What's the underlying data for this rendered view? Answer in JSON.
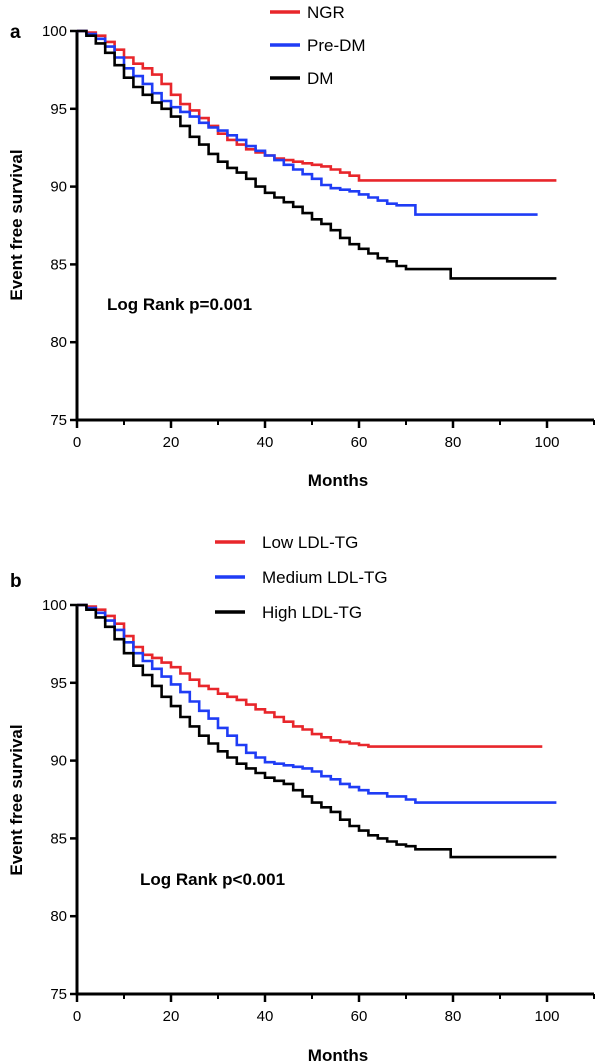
{
  "chart_data": [
    {
      "type": "line",
      "panel_label": "a",
      "xlabel": "Months",
      "ylabel": "Event free survival",
      "xlim": [
        0,
        110
      ],
      "ylim": [
        75,
        100
      ],
      "xticks": [
        0,
        20,
        40,
        60,
        80,
        100
      ],
      "yticks": [
        75,
        80,
        85,
        90,
        95,
        100
      ],
      "annotation": "Log Rank p=0.001",
      "legend_position": "top-center",
      "series": [
        {
          "name": "NGR",
          "color": "#e8262b",
          "points": [
            [
              0,
              100
            ],
            [
              2,
              99.9
            ],
            [
              4,
              99.7
            ],
            [
              6,
              99.3
            ],
            [
              8,
              98.8
            ],
            [
              10,
              98.3
            ],
            [
              12,
              97.9
            ],
            [
              14,
              97.6
            ],
            [
              16,
              97.2
            ],
            [
              18,
              96.6
            ],
            [
              20,
              95.9
            ],
            [
              22,
              95.3
            ],
            [
              24,
              94.9
            ],
            [
              26,
              94.4
            ],
            [
              28,
              93.9
            ],
            [
              30,
              93.4
            ],
            [
              32,
              93.0
            ],
            [
              34,
              92.7
            ],
            [
              36,
              92.4
            ],
            [
              38,
              92.2
            ],
            [
              40,
              92.0
            ],
            [
              42,
              91.8
            ],
            [
              44,
              91.7
            ],
            [
              46,
              91.6
            ],
            [
              48,
              91.5
            ],
            [
              50,
              91.4
            ],
            [
              52,
              91.3
            ],
            [
              54,
              91.1
            ],
            [
              56,
              90.9
            ],
            [
              58,
              90.7
            ],
            [
              60,
              90.4
            ],
            [
              70,
              90.4
            ],
            [
              80,
              90.4
            ],
            [
              90,
              90.4
            ],
            [
              102,
              90.4
            ]
          ]
        },
        {
          "name": "Pre-DM",
          "color": "#1f3cf5",
          "points": [
            [
              0,
              100
            ],
            [
              2,
              99.8
            ],
            [
              4,
              99.5
            ],
            [
              6,
              99.0
            ],
            [
              8,
              98.3
            ],
            [
              10,
              97.6
            ],
            [
              12,
              97.1
            ],
            [
              14,
              96.6
            ],
            [
              16,
              96.0
            ],
            [
              18,
              95.5
            ],
            [
              20,
              95.1
            ],
            [
              22,
              94.8
            ],
            [
              24,
              94.5
            ],
            [
              26,
              94.1
            ],
            [
              28,
              93.8
            ],
            [
              30,
              93.6
            ],
            [
              32,
              93.3
            ],
            [
              34,
              93.0
            ],
            [
              36,
              92.6
            ],
            [
              38,
              92.3
            ],
            [
              40,
              92.0
            ],
            [
              42,
              91.7
            ],
            [
              44,
              91.4
            ],
            [
              46,
              91.1
            ],
            [
              48,
              90.8
            ],
            [
              50,
              90.5
            ],
            [
              52,
              90.1
            ],
            [
              54,
              89.9
            ],
            [
              56,
              89.8
            ],
            [
              58,
              89.7
            ],
            [
              60,
              89.5
            ],
            [
              62,
              89.3
            ],
            [
              64,
              89.1
            ],
            [
              66,
              88.9
            ],
            [
              68,
              88.8
            ],
            [
              72,
              88.2
            ],
            [
              80,
              88.2
            ],
            [
              90,
              88.2
            ],
            [
              98,
              88.2
            ]
          ]
        },
        {
          "name": "DM",
          "color": "#000000",
          "points": [
            [
              0,
              100
            ],
            [
              2,
              99.7
            ],
            [
              4,
              99.2
            ],
            [
              6,
              98.6
            ],
            [
              8,
              97.8
            ],
            [
              10,
              97.0
            ],
            [
              12,
              96.4
            ],
            [
              14,
              95.9
            ],
            [
              16,
              95.4
            ],
            [
              18,
              95.0
            ],
            [
              20,
              94.5
            ],
            [
              22,
              93.9
            ],
            [
              24,
              93.2
            ],
            [
              26,
              92.7
            ],
            [
              28,
              92.1
            ],
            [
              30,
              91.6
            ],
            [
              32,
              91.2
            ],
            [
              34,
              90.9
            ],
            [
              36,
              90.5
            ],
            [
              38,
              90.0
            ],
            [
              40,
              89.6
            ],
            [
              42,
              89.3
            ],
            [
              44,
              89.0
            ],
            [
              46,
              88.7
            ],
            [
              48,
              88.3
            ],
            [
              50,
              87.9
            ],
            [
              52,
              87.6
            ],
            [
              54,
              87.2
            ],
            [
              56,
              86.7
            ],
            [
              58,
              86.3
            ],
            [
              60,
              86.0
            ],
            [
              62,
              85.7
            ],
            [
              64,
              85.4
            ],
            [
              66,
              85.2
            ],
            [
              68,
              84.9
            ],
            [
              70,
              84.7
            ],
            [
              79,
              84.7
            ],
            [
              79.5,
              84.1
            ],
            [
              90,
              84.1
            ],
            [
              102,
              84.1
            ]
          ]
        }
      ]
    },
    {
      "type": "line",
      "panel_label": "b",
      "xlabel": "Months",
      "ylabel": "Event free survival",
      "xlim": [
        0,
        110
      ],
      "ylim": [
        75,
        100
      ],
      "xticks": [
        0,
        20,
        40,
        60,
        80,
        100
      ],
      "yticks": [
        75,
        80,
        85,
        90,
        95,
        100
      ],
      "annotation": "Log Rank p<0.001",
      "legend_position": "top-center",
      "series": [
        {
          "name": "Low LDL-TG",
          "color": "#e8262b",
          "points": [
            [
              0,
              100
            ],
            [
              2,
              99.9
            ],
            [
              4,
              99.7
            ],
            [
              6,
              99.3
            ],
            [
              8,
              98.8
            ],
            [
              10,
              98.0
            ],
            [
              12,
              97.3
            ],
            [
              14,
              96.8
            ],
            [
              16,
              96.6
            ],
            [
              18,
              96.3
            ],
            [
              20,
              96.0
            ],
            [
              22,
              95.6
            ],
            [
              24,
              95.2
            ],
            [
              26,
              94.8
            ],
            [
              28,
              94.6
            ],
            [
              30,
              94.3
            ],
            [
              32,
              94.1
            ],
            [
              34,
              93.9
            ],
            [
              36,
              93.6
            ],
            [
              38,
              93.3
            ],
            [
              40,
              93.1
            ],
            [
              42,
              92.8
            ],
            [
              44,
              92.5
            ],
            [
              46,
              92.2
            ],
            [
              48,
              92.0
            ],
            [
              50,
              91.7
            ],
            [
              52,
              91.5
            ],
            [
              54,
              91.3
            ],
            [
              56,
              91.2
            ],
            [
              58,
              91.1
            ],
            [
              60,
              91.0
            ],
            [
              62,
              90.9
            ],
            [
              70,
              90.9
            ],
            [
              80,
              90.9
            ],
            [
              90,
              90.9
            ],
            [
              99,
              90.9
            ]
          ]
        },
        {
          "name": "Medium LDL-TG",
          "color": "#1f3cf5",
          "points": [
            [
              0,
              100
            ],
            [
              2,
              99.8
            ],
            [
              4,
              99.5
            ],
            [
              6,
              99.0
            ],
            [
              8,
              98.4
            ],
            [
              10,
              97.6
            ],
            [
              12,
              96.9
            ],
            [
              14,
              96.4
            ],
            [
              16,
              95.9
            ],
            [
              18,
              95.4
            ],
            [
              20,
              94.9
            ],
            [
              22,
              94.4
            ],
            [
              24,
              93.8
            ],
            [
              26,
              93.2
            ],
            [
              28,
              92.7
            ],
            [
              30,
              92.1
            ],
            [
              32,
              91.6
            ],
            [
              34,
              91.0
            ],
            [
              36,
              90.5
            ],
            [
              38,
              90.2
            ],
            [
              40,
              89.9
            ],
            [
              42,
              89.8
            ],
            [
              44,
              89.7
            ],
            [
              46,
              89.6
            ],
            [
              48,
              89.5
            ],
            [
              50,
              89.3
            ],
            [
              52,
              89.0
            ],
            [
              54,
              88.8
            ],
            [
              56,
              88.5
            ],
            [
              58,
              88.3
            ],
            [
              60,
              88.1
            ],
            [
              62,
              87.9
            ],
            [
              66,
              87.7
            ],
            [
              70,
              87.5
            ],
            [
              72,
              87.3
            ],
            [
              80,
              87.3
            ],
            [
              90,
              87.3
            ],
            [
              102,
              87.3
            ]
          ]
        },
        {
          "name": "High LDL-TG",
          "color": "#000000",
          "points": [
            [
              0,
              100
            ],
            [
              2,
              99.7
            ],
            [
              4,
              99.2
            ],
            [
              6,
              98.6
            ],
            [
              8,
              97.8
            ],
            [
              10,
              96.9
            ],
            [
              12,
              96.1
            ],
            [
              14,
              95.5
            ],
            [
              16,
              94.8
            ],
            [
              18,
              94.1
            ],
            [
              20,
              93.5
            ],
            [
              22,
              92.8
            ],
            [
              24,
              92.2
            ],
            [
              26,
              91.6
            ],
            [
              28,
              91.1
            ],
            [
              30,
              90.6
            ],
            [
              32,
              90.2
            ],
            [
              34,
              89.8
            ],
            [
              36,
              89.5
            ],
            [
              38,
              89.2
            ],
            [
              40,
              88.9
            ],
            [
              42,
              88.7
            ],
            [
              44,
              88.5
            ],
            [
              46,
              88.1
            ],
            [
              48,
              87.7
            ],
            [
              50,
              87.3
            ],
            [
              52,
              87.0
            ],
            [
              54,
              86.7
            ],
            [
              56,
              86.2
            ],
            [
              58,
              85.8
            ],
            [
              60,
              85.5
            ],
            [
              62,
              85.2
            ],
            [
              64,
              85.0
            ],
            [
              66,
              84.8
            ],
            [
              68,
              84.6
            ],
            [
              70,
              84.5
            ],
            [
              72,
              84.3
            ],
            [
              79,
              84.3
            ],
            [
              79.5,
              83.8
            ],
            [
              90,
              83.8
            ],
            [
              102,
              83.8
            ]
          ]
        }
      ]
    }
  ]
}
